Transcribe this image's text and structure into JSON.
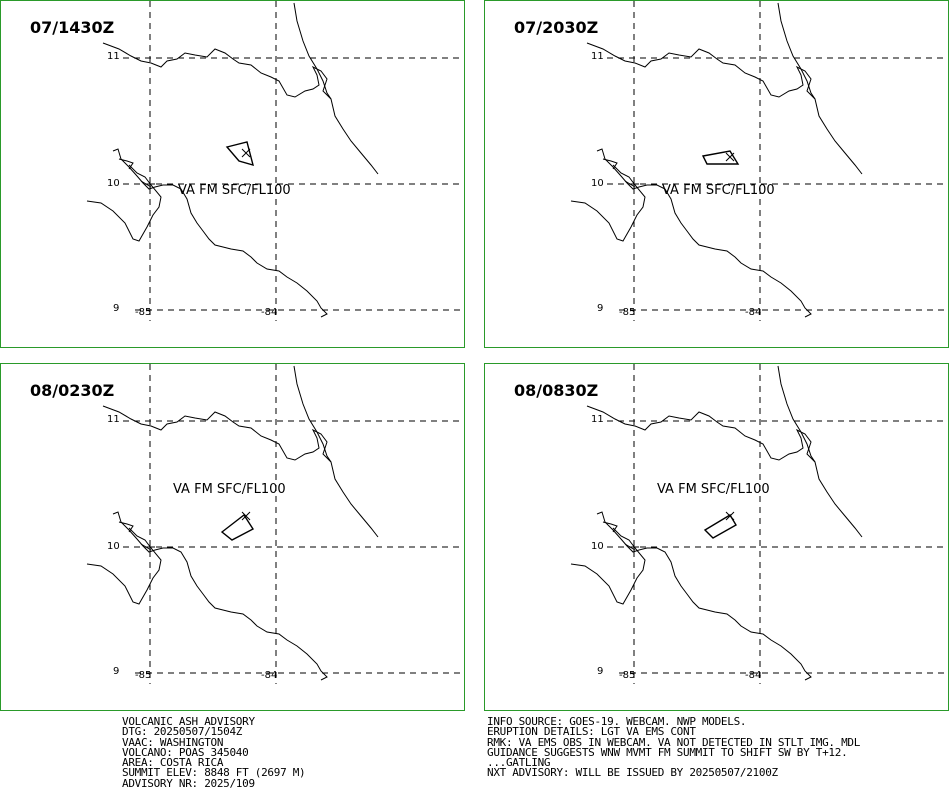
{
  "panels": [
    {
      "time": "07/1430Z",
      "va_label": "VA FM SFC/FL100"
    },
    {
      "time": "07/2030Z",
      "va_label": "VA FM SFC/FL100"
    },
    {
      "time": "08/0230Z",
      "va_label": "VA FM SFC/FL100"
    },
    {
      "time": "08/0830Z",
      "va_label": "VA FM SFC/FL100"
    }
  ],
  "axis_labels": {
    "lat_11": "11",
    "lat_10": "10",
    "lat_9": "9",
    "lon_85": "-85",
    "lon_84": "-84"
  },
  "advisory_left": [
    "VOLCANIC ASH ADVISORY",
    "DTG: 20250507/1504Z",
    "VAAC: WASHINGTON",
    "VOLCANO: POAS 345040",
    "AREA: COSTA RICA",
    "SUMMIT ELEV: 8848 FT (2697 M)",
    "ADVISORY NR: 2025/109"
  ],
  "advisory_right": [
    "INFO SOURCE: GOES-19. WEBCAM. NWP MODELS.",
    "ERUPTION DETAILS: LGT VA EMS CONT",
    "RMK: VA EMS OBS IN WEBCAM. VA NOT DETECTED IN STLT IMG. MDL",
    "GUIDANCE SUGGESTS WNW MVMT FM SUMMIT TO SHIFT SW BY T+12.",
    "...GATLING",
    "NXT ADVISORY: WILL BE ISSUED BY 20250507/2100Z"
  ],
  "colors": {
    "panel_border": "#2a9a2a",
    "lines": "#000000"
  }
}
